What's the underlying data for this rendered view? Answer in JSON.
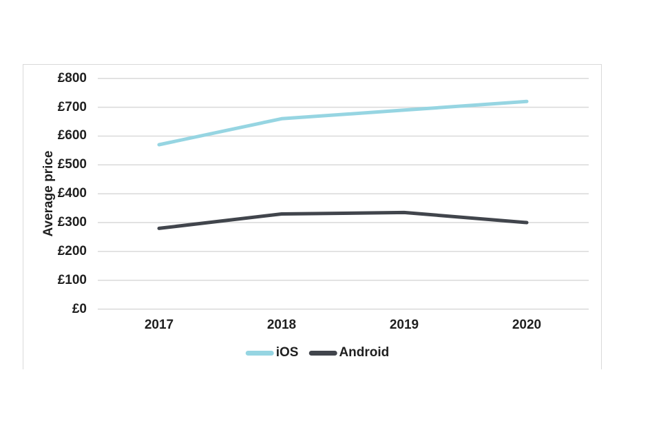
{
  "chart_data": {
    "type": "line",
    "title": "",
    "xlabel": "",
    "ylabel": "Average price",
    "categories": [
      "2017",
      "2018",
      "2019",
      "2020"
    ],
    "series": [
      {
        "name": "iOS",
        "color": "#96d5e2",
        "values": [
          570,
          660,
          690,
          720
        ]
      },
      {
        "name": "Android",
        "color": "#41454c",
        "values": [
          280,
          330,
          335,
          300
        ]
      }
    ],
    "ylim": [
      0,
      800
    ],
    "ytick_step": 100,
    "ytick_labels": [
      "£800",
      "£700",
      "£600",
      "£500",
      "£400",
      "£300",
      "£200",
      "£100",
      "£0"
    ],
    "grid": "horizontal",
    "legend_position": "bottom",
    "colors": {
      "gridline": "#d9d9d9",
      "frame_border": "#d9d9d9",
      "text": "#1f1f1f",
      "background": "#ffffff"
    }
  },
  "legend": {
    "items": [
      {
        "label": "iOS"
      },
      {
        "label": "Android"
      }
    ]
  }
}
